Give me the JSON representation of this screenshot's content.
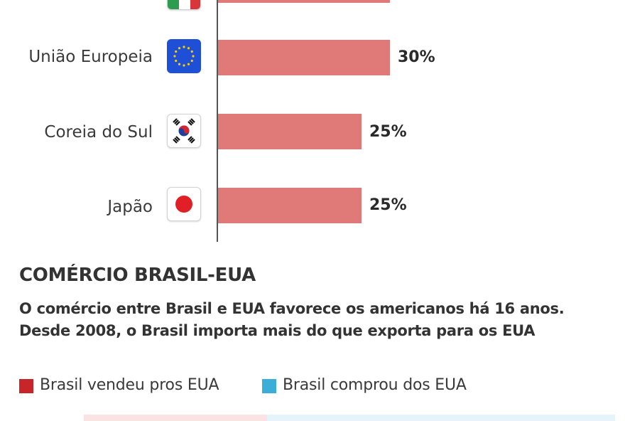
{
  "chart_data": [
    {
      "type": "bar",
      "orientation": "horizontal",
      "categories": [
        "",
        "União Europeia",
        "Coreia do Sul",
        "Japão"
      ],
      "values": [
        null,
        30,
        25,
        25
      ],
      "value_labels": [
        "",
        "30%",
        "25%",
        "25%"
      ],
      "value_unit": "%",
      "grid": false,
      "bar_color": "#e07a78",
      "partially_visible_top_bar": true
    },
    {
      "type": "bar",
      "title": "COMÉRCIO BRASIL-EUA",
      "subtitle_lines": [
        "O comércio entre Brasil e EUA favorece os americanos há 16 anos.",
        "Desde 2008, o Brasil importa mais do que exporta para os EUA"
      ],
      "legend_position": "top-left",
      "series": [
        {
          "name": "Brasil vendeu pros EUA",
          "color": "#c8252b"
        },
        {
          "name": "Brasil comprou dos EUA",
          "color": "#3aaed8"
        }
      ]
    }
  ],
  "flags": {
    "top": "italy-flag-icon",
    "eu": "eu-flag-icon",
    "korea": "south-korea-flag-icon",
    "japan": "japan-flag-icon"
  },
  "colors": {
    "bar": "#e07a78",
    "axis": "#555555",
    "sold": "#c8252b",
    "bought": "#3aaed8",
    "strip_sold": "#fbe3e3",
    "strip_bought": "#e4f4fa"
  }
}
